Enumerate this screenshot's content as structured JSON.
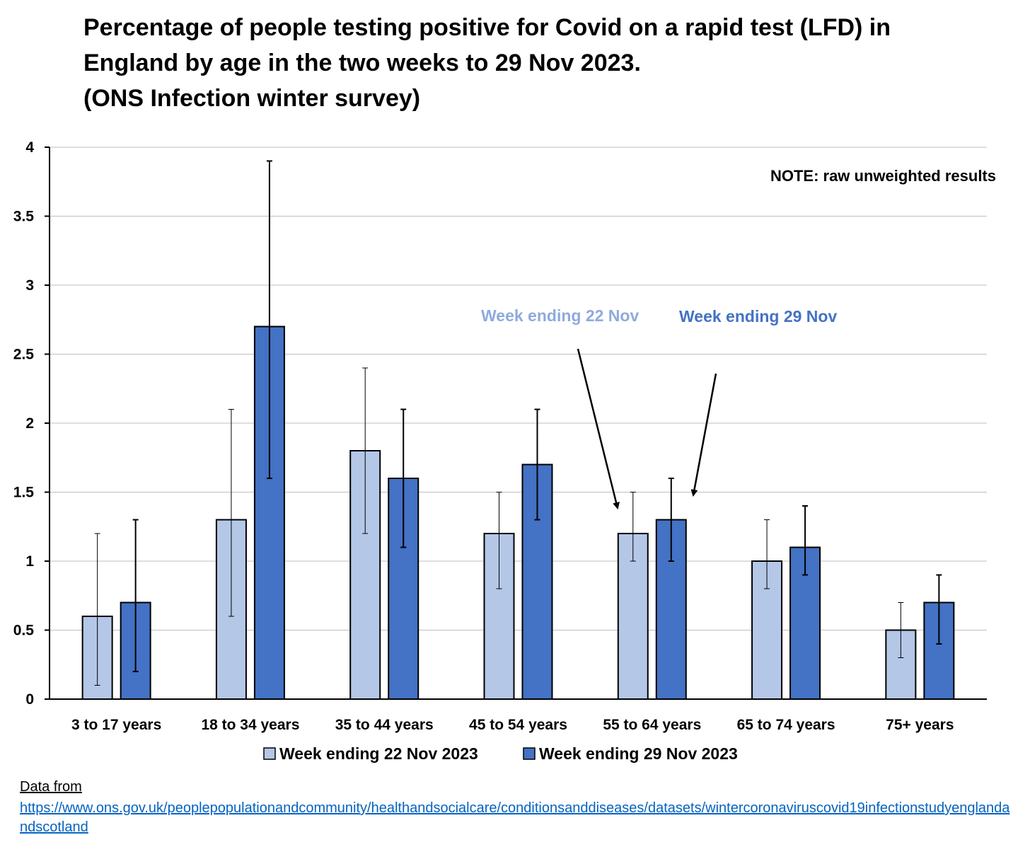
{
  "title": {
    "line1": "Percentage of people testing positive for Covid on a rapid test (LFD) in",
    "line2": "England by age in the two weeks to 29 Nov 2023.",
    "line3": "(ONS Infection winter survey)"
  },
  "chart_data": {
    "type": "bar",
    "categories": [
      "3 to 17 years",
      "18 to 34 years",
      "35 to 44 years",
      "45 to 54 years",
      "55 to 64 years",
      "65 to 74 years",
      "75+ years"
    ],
    "series": [
      {
        "name": "Week ending 22 Nov 2023",
        "color": "#b4c7e7",
        "values": [
          0.6,
          1.3,
          1.8,
          1.2,
          1.2,
          1.0,
          0.5
        ],
        "error_low": [
          0.1,
          0.6,
          1.2,
          0.8,
          1.0,
          0.8,
          0.3
        ],
        "error_high": [
          1.2,
          2.1,
          2.4,
          1.5,
          1.5,
          1.3,
          0.7
        ]
      },
      {
        "name": "Week ending 29 Nov 2023",
        "color": "#4472c4",
        "values": [
          0.7,
          2.7,
          1.6,
          1.7,
          1.3,
          1.1,
          0.7
        ],
        "error_low": [
          0.2,
          1.6,
          1.1,
          1.3,
          1.0,
          0.9,
          0.4
        ],
        "error_high": [
          1.3,
          3.9,
          2.1,
          2.1,
          1.6,
          1.4,
          0.9
        ]
      }
    ],
    "ylim": [
      0,
      4
    ],
    "yticks": [
      "0",
      "0.5",
      "1",
      "1.5",
      "2",
      "2.5",
      "3",
      "3.5",
      "4"
    ],
    "grid": true,
    "legend_position": "bottom",
    "annotations": {
      "note": "NOTE: raw unweighted results",
      "label_22": "Week ending 22 Nov",
      "label_29": "Week ending 29 Nov",
      "label_22_color": "#8faadc",
      "label_29_color": "#4472c4"
    }
  },
  "source": {
    "label": "Data from",
    "url": "https://www.ons.gov.uk/peoplepopulationandcommunity/healthandsocialcare/conditionsanddiseases/datasets/wintercoronaviruscovid19infectionstudyenglandandscotland"
  }
}
